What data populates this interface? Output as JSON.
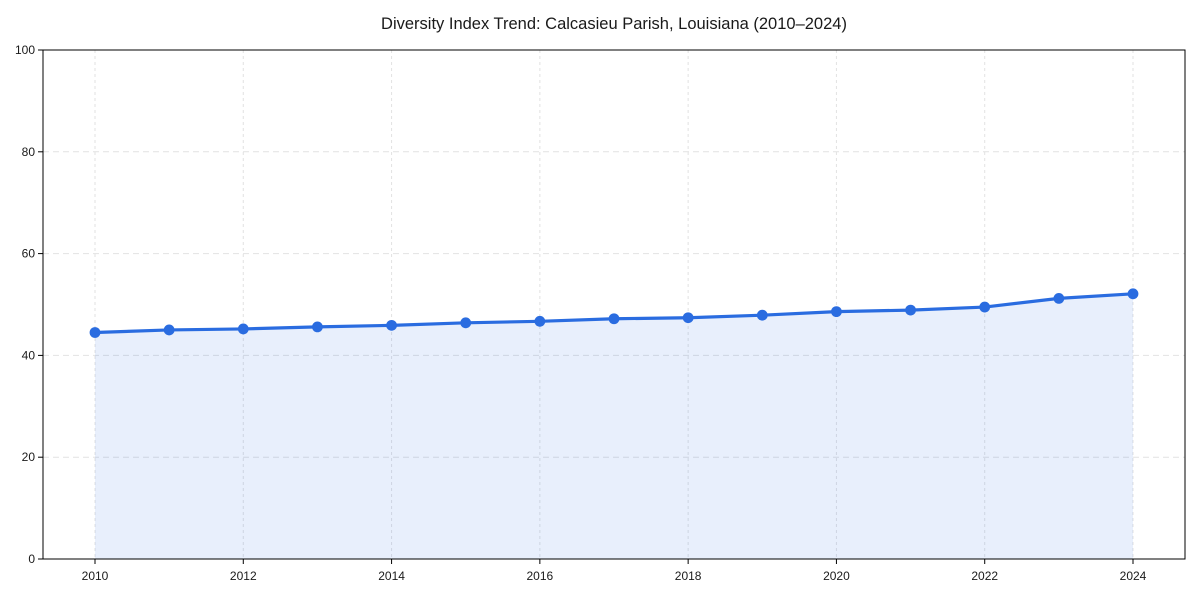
{
  "chart_data": {
    "type": "line",
    "title": "Diversity Index Trend: Calcasieu Parish, Louisiana (2010–2024)",
    "x": [
      2010,
      2011,
      2012,
      2013,
      2014,
      2015,
      2016,
      2017,
      2018,
      2019,
      2020,
      2021,
      2022,
      2023,
      2024
    ],
    "series": [
      {
        "name": "Diversity Index",
        "values": [
          44.5,
          45.0,
          45.2,
          45.6,
          45.9,
          46.4,
          46.7,
          47.2,
          47.4,
          47.9,
          48.6,
          48.9,
          49.5,
          51.2,
          52.1
        ]
      }
    ],
    "xlabel": "",
    "ylabel": "",
    "ylim": [
      0,
      100
    ],
    "yticks": [
      0,
      20,
      40,
      60,
      80,
      100
    ],
    "ytick_labels": [
      "0",
      "20",
      "40",
      "60",
      "80",
      "100"
    ],
    "xticks": [
      2010,
      2012,
      2014,
      2016,
      2018,
      2020,
      2022,
      2024
    ],
    "xtick_labels": [
      "2010",
      "2012",
      "2014",
      "2016",
      "2018",
      "2020",
      "2022",
      "2024"
    ],
    "grid": true,
    "legend_position": "none",
    "area_fill": true,
    "marker": "circle",
    "style": {
      "line_color": "#2a6ce0",
      "marker_color": "#2a6ce0",
      "fill_color": "#2a6ce0",
      "fill_opacity": 0.11,
      "grid_color": "#e2e2e2",
      "axis_color": "#000000",
      "tick_label_color": "#1a1a1a",
      "title_color": "#1a1a1a",
      "background_color": "#ffffff"
    }
  }
}
